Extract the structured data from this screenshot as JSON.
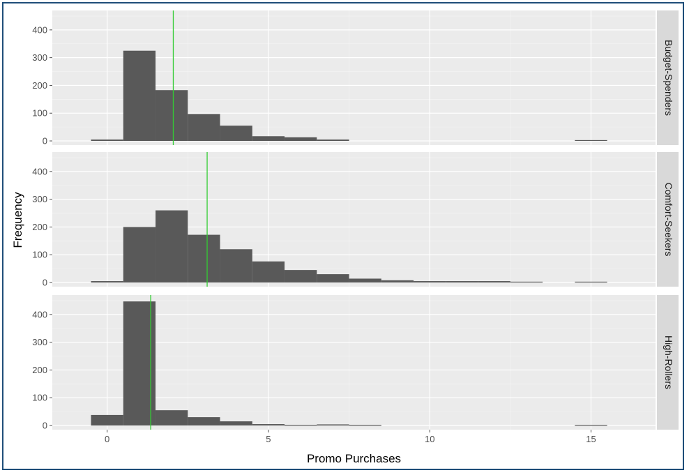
{
  "chart_data": {
    "type": "bar",
    "subtype": "faceted histogram",
    "xlabel": "Promo Purchases",
    "ylabel": "Frequency",
    "x_ticks": [
      0,
      5,
      10,
      15
    ],
    "y_ticks": [
      0,
      100,
      200,
      300,
      400
    ],
    "xlim": [
      -1.7,
      17
    ],
    "ylim": [
      -15,
      470
    ],
    "bin_width": 1,
    "facet_direction": "rows",
    "mean_line_color": "#33cc33",
    "bar_color": "#595959",
    "panel_background": "#ebebeb",
    "strip_background": "#d9d9d9",
    "facets": [
      {
        "name": "Budget-Spenders",
        "bins": [
          0,
          1,
          2,
          3,
          4,
          5,
          6,
          7,
          15
        ],
        "counts": [
          5,
          325,
          183,
          97,
          55,
          17,
          13,
          5,
          3
        ],
        "mean": 2.05
      },
      {
        "name": "Comfort-Seekers",
        "bins": [
          0,
          1,
          2,
          3,
          4,
          5,
          6,
          7,
          8,
          9,
          10,
          11,
          12,
          13,
          15
        ],
        "counts": [
          5,
          200,
          260,
          172,
          120,
          76,
          45,
          30,
          14,
          8,
          5,
          5,
          5,
          3,
          3
        ],
        "mean": 3.1
      },
      {
        "name": "High-Rollers",
        "bins": [
          0,
          1,
          2,
          3,
          4,
          5,
          6,
          7,
          8,
          15
        ],
        "counts": [
          38,
          447,
          55,
          30,
          15,
          5,
          2,
          4,
          2,
          2
        ],
        "mean": 1.35
      }
    ]
  }
}
